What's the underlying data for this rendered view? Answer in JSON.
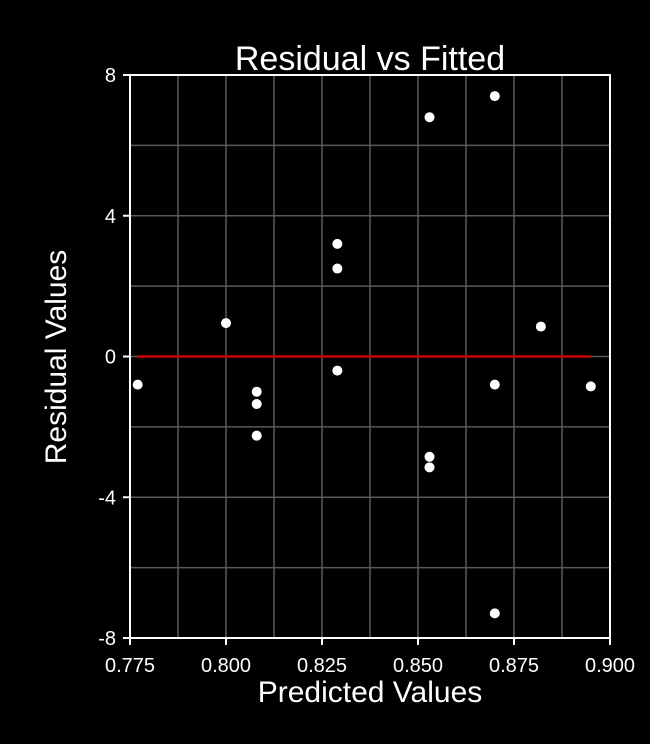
{
  "chart_data": {
    "type": "scatter",
    "title": "Residual vs Fitted",
    "xlabel": "Predicted Values",
    "ylabel": "Residual Values",
    "xlim": [
      0.775,
      0.9
    ],
    "ylim": [
      -8,
      8
    ],
    "xticks": [
      "0.775",
      "0.800",
      "0.825",
      "0.850",
      "0.875",
      "0.900"
    ],
    "yticks": [
      "-8",
      "-4",
      "0",
      "4",
      "8"
    ],
    "grid": true,
    "reference_line": {
      "y": 0,
      "x_range": [
        0.777,
        0.895
      ],
      "color": "#cc0000"
    },
    "colors": {
      "background": "#000000",
      "plot_background": "#000000",
      "grid": "#5a5a5a",
      "axes": "#ffffff",
      "points": "#ffffff",
      "text": "#ffffff"
    },
    "points": [
      {
        "x": 0.777,
        "y": -0.8
      },
      {
        "x": 0.8,
        "y": 0.95
      },
      {
        "x": 0.808,
        "y": -1.0
      },
      {
        "x": 0.808,
        "y": -1.35
      },
      {
        "x": 0.808,
        "y": -2.25
      },
      {
        "x": 0.829,
        "y": 3.2
      },
      {
        "x": 0.829,
        "y": 2.5
      },
      {
        "x": 0.829,
        "y": -0.4
      },
      {
        "x": 0.853,
        "y": 6.8
      },
      {
        "x": 0.853,
        "y": -2.85
      },
      {
        "x": 0.853,
        "y": -3.15
      },
      {
        "x": 0.87,
        "y": 7.4
      },
      {
        "x": 0.87,
        "y": -0.8
      },
      {
        "x": 0.87,
        "y": -7.3
      },
      {
        "x": 0.882,
        "y": 0.85
      },
      {
        "x": 0.895,
        "y": -0.85
      }
    ]
  }
}
